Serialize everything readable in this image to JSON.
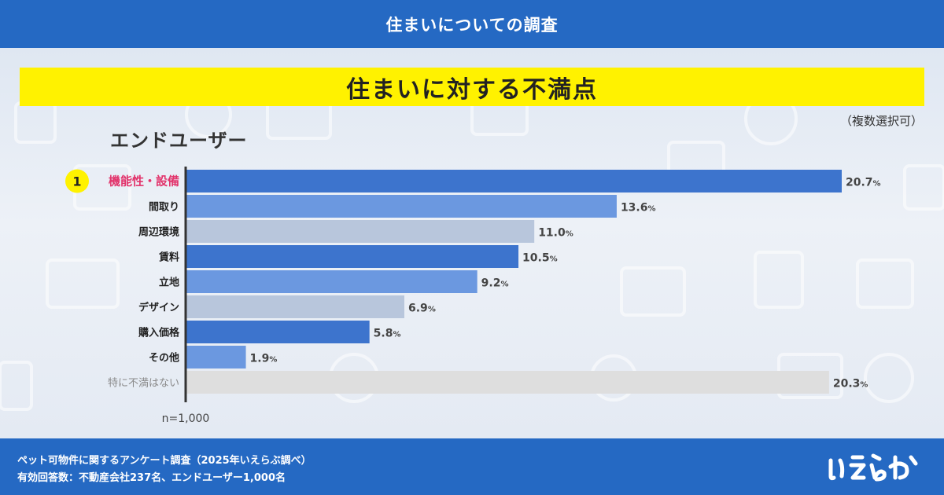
{
  "header": {
    "title": "住まいについての調査"
  },
  "banner": {
    "title": "住まいに対する不満点"
  },
  "note": "（複数選択可）",
  "subtitle": "エンドユーザー",
  "colors": {
    "header_bg": "#2569c3",
    "banner_bg": "#fff200",
    "bar_dark": "#3d74cd",
    "bar_medium": "#6b98e0",
    "bar_gray": "#b8c6dc",
    "bar_light": "#dedede",
    "highlight_text": "#e2336b"
  },
  "chart_data": {
    "type": "bar",
    "orientation": "horizontal",
    "title": "住まいに対する不満点",
    "categories": [
      "機能性・設備",
      "間取り",
      "周辺環境",
      "賃料",
      "立地",
      "デザイン",
      "購入価格",
      "その他",
      "特に不満はない"
    ],
    "values": [
      20.7,
      13.6,
      11.0,
      10.5,
      9.2,
      6.9,
      5.8,
      1.9,
      20.3
    ],
    "value_labels": [
      "20.7",
      "13.6",
      "11.0",
      "10.5",
      "9.2",
      "6.9",
      "5.8",
      "1.9",
      "20.3"
    ],
    "unit": "%",
    "bar_styles": [
      "dark",
      "medium",
      "gray",
      "dark",
      "medium",
      "gray",
      "dark",
      "medium",
      "light"
    ],
    "rank_badge": {
      "index": 0,
      "label": "1"
    },
    "xlim": [
      0,
      20.7
    ],
    "sample": "n=1,000"
  },
  "footer": {
    "line1": "ペット可物件に関するアンケート調査（2025年いえらぶ調べ）",
    "line2": "有効回答数：不動産会社237名、エンドユーザー1,000名"
  },
  "logo": {
    "text": "いえらぶ",
    "icon": "ierabu-logo-icon"
  }
}
